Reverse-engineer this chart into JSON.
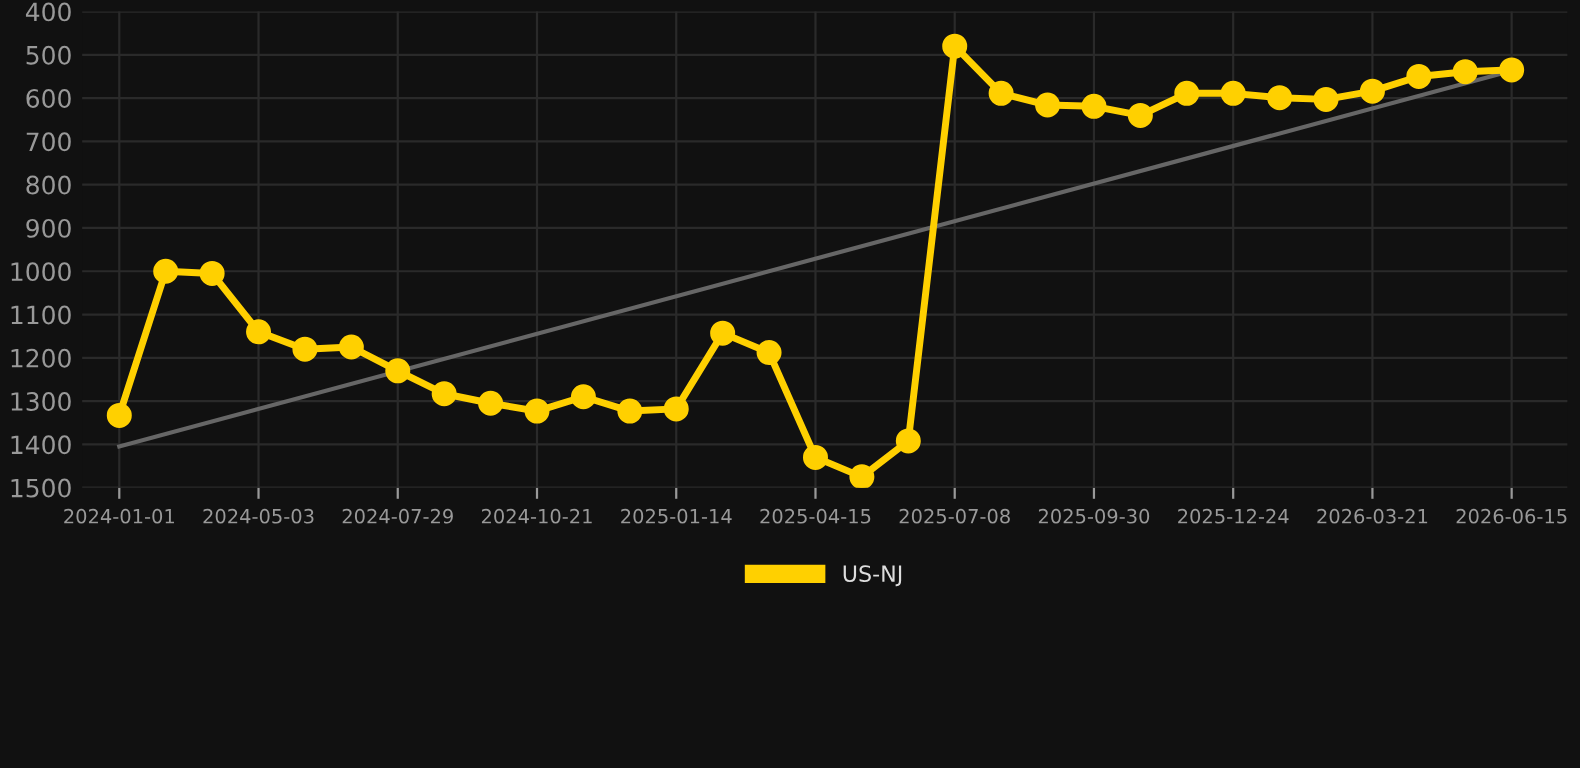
{
  "chart_data": {
    "type": "line",
    "categories": [
      "2024-01-01",
      null,
      null,
      "2024-05-03",
      null,
      null,
      "2024-07-29",
      null,
      null,
      "2024-10-21",
      null,
      null,
      "2025-01-14",
      null,
      null,
      "2025-04-15",
      null,
      null,
      "2025-07-08",
      null,
      null,
      "2025-09-30",
      null,
      null,
      "2025-12-24",
      null,
      null,
      "2026-03-21",
      null,
      null,
      "2026-06-15"
    ],
    "series": [
      {
        "name": "US-NJ",
        "color": "#ffd000",
        "marker": "circle",
        "values": [
          1333,
          1000,
          1005,
          1140,
          1180,
          1175,
          1230,
          1283,
          1305,
          1323,
          1290,
          1323,
          1318,
          1143,
          1188,
          1430,
          1475,
          1392,
          480,
          589,
          616,
          619,
          640,
          589,
          589,
          599,
          603,
          584,
          550,
          539,
          535
        ]
      },
      {
        "color": "#666666",
        "marker": "none",
        "values": [
          1405,
          null,
          null,
          null,
          null,
          null,
          null,
          null,
          null,
          null,
          null,
          null,
          null,
          null,
          null,
          null,
          null,
          null,
          null,
          null,
          null,
          null,
          null,
          null,
          null,
          null,
          null,
          null,
          null,
          null,
          537
        ]
      }
    ],
    "ylim": [
      1500,
      400
    ],
    "yticks": [
      400,
      500,
      600,
      700,
      800,
      900,
      1000,
      1100,
      1200,
      1300,
      1400,
      1500
    ],
    "grid": true,
    "legend": "bottom",
    "line_style": "solid"
  }
}
